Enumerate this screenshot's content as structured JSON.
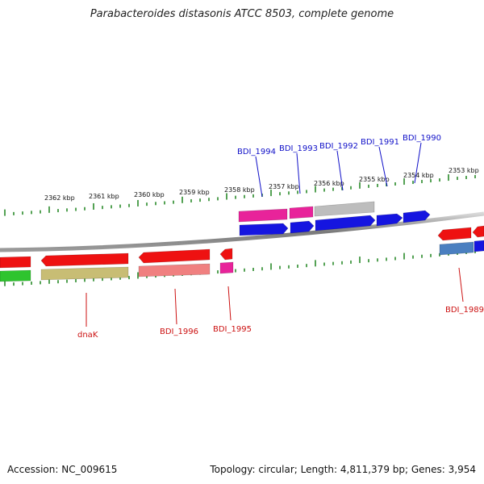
{
  "title": "Parabacteroides distasonis ATCC 8503, complete genome",
  "footer": {
    "accession": "Accession: NC_009615",
    "summary": "Topology: circular; Length: 4,811,379 bp; Genes: 3,954"
  },
  "colors": {
    "backbone": "#8c8c8c",
    "ticks": "#2a8a2a",
    "label_above": "#1010c8",
    "label_below": "#cc1111",
    "forward_cds": "#1515e0",
    "forward_rna_pink": "#e8239a",
    "forward_grey": "#bdbdbd",
    "reverse_cds": "#ee1111",
    "reverse_salmon": "#f08080",
    "reverse_green": "#2ec42e",
    "reverse_khaki": "#c8bd74",
    "reverse_pink": "#e8239a",
    "steelblue": "#4a7fc0"
  },
  "ticks": [
    {
      "label": "2362 kbp"
    },
    {
      "label": "2361 kbp"
    },
    {
      "label": "2360 kbp"
    },
    {
      "label": "2359 kbp"
    },
    {
      "label": "2358 kbp"
    },
    {
      "label": "2357 kbp"
    },
    {
      "label": "2356 kbp"
    },
    {
      "label": "2355 kbp"
    },
    {
      "label": "2354 kbp"
    },
    {
      "label": "2353 kbp"
    }
  ],
  "genes_above": [
    {
      "name": "BDI_1994"
    },
    {
      "name": "BDI_1993"
    },
    {
      "name": "BDI_1992"
    },
    {
      "name": "BDI_1991"
    },
    {
      "name": "BDI_1990"
    }
  ],
  "genes_below": [
    {
      "name": "dnaK"
    },
    {
      "name": "BDI_1996"
    },
    {
      "name": "BDI_1995"
    },
    {
      "name": "BDI_1989"
    }
  ]
}
